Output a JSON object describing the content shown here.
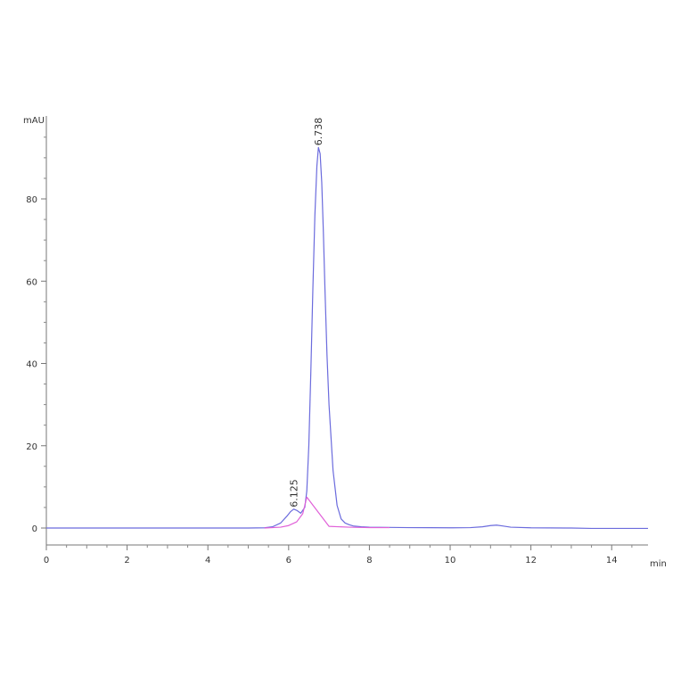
{
  "chart_data": {
    "type": "line",
    "title": "",
    "xlabel": "min",
    "ylabel": "mAU",
    "xlim": [
      0,
      14.9
    ],
    "ylim": [
      -4,
      100
    ],
    "x_ticks": [
      0,
      2,
      4,
      6,
      8,
      10,
      12,
      14
    ],
    "x_tick_labels": [
      "0",
      "2",
      "4",
      "6",
      "8",
      "10",
      "12",
      "14"
    ],
    "y_ticks": [
      0,
      20,
      40,
      60,
      80
    ],
    "y_tick_labels": [
      "0",
      "20",
      "40",
      "60",
      "80"
    ],
    "grid": false,
    "series": [
      {
        "color": "#6b6bdd",
        "x": [
          0,
          1,
          2,
          3,
          4,
          5,
          5.4,
          5.6,
          5.8,
          5.95,
          6.05,
          6.125,
          6.2,
          6.3,
          6.4,
          6.45,
          6.5,
          6.55,
          6.6,
          6.65,
          6.7,
          6.738,
          6.78,
          6.82,
          6.86,
          6.9,
          6.95,
          7.0,
          7.1,
          7.2,
          7.3,
          7.4,
          7.5,
          7.6,
          7.8,
          8.0,
          8.5,
          9.0,
          9.5,
          10.0,
          10.5,
          10.8,
          11.0,
          11.15,
          11.3,
          11.5,
          12.0,
          13.0,
          13.5,
          14.0,
          14.9
        ],
        "values": [
          0,
          0,
          0,
          0,
          0,
          0,
          0.05,
          0.3,
          1.2,
          2.8,
          4.0,
          4.6,
          4.3,
          3.6,
          5.0,
          9.0,
          20.0,
          38.0,
          58.0,
          76.0,
          88.0,
          92.5,
          91.0,
          84.0,
          72.0,
          58.0,
          42.0,
          30.0,
          14.0,
          5.5,
          2.2,
          1.2,
          0.8,
          0.5,
          0.3,
          0.2,
          0.15,
          0.1,
          0.08,
          0.05,
          0.1,
          0.3,
          0.6,
          0.7,
          0.5,
          0.2,
          0.05,
          0,
          -0.1,
          -0.1,
          -0.1
        ]
      },
      {
        "color": "#e060d8",
        "x": [
          5.4,
          5.8,
          6.0,
          6.2,
          6.35,
          6.45,
          7.0,
          7.5,
          8.0,
          8.5
        ],
        "values": [
          0,
          0.2,
          0.6,
          1.5,
          3.5,
          7.5,
          0.4,
          0.2,
          0.1,
          0.1
        ]
      }
    ],
    "peak_labels": [
      {
        "x": 6.125,
        "y": 4.6,
        "text": "6.125"
      },
      {
        "x": 6.738,
        "y": 92.5,
        "text": "6.738"
      }
    ]
  }
}
